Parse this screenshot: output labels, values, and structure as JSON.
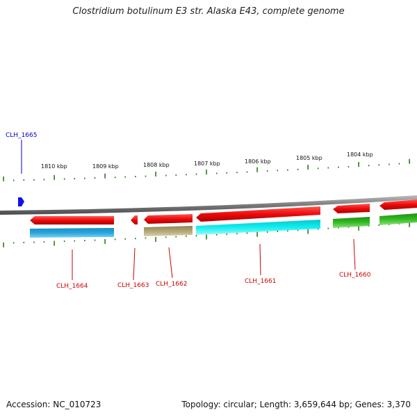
{
  "title": "Clostridium botulinum E3 str. Alaska E43, complete genome",
  "footer": {
    "accession": "Accession: NC_010723",
    "summary": "Topology: circular; Length: 3,659,644 bp; Genes: 3,370"
  },
  "ruler": [
    "1810 kbp",
    "1809 kbp",
    "1808 kbp",
    "1807 kbp",
    "1806 kbp",
    "1805 kbp",
    "1804 kbp"
  ],
  "genes": [
    {
      "name": "CLH_1665",
      "color": "#0000cc",
      "strand": "forward"
    },
    {
      "name": "CLH_1664",
      "color": "#cc0000",
      "strand": "reverse"
    },
    {
      "name": "CLH_1663",
      "color": "#cc0000",
      "strand": "reverse"
    },
    {
      "name": "CLH_1662",
      "color": "#cc0000",
      "strand": "reverse"
    },
    {
      "name": "CLH_1661",
      "color": "#cc0000",
      "strand": "reverse"
    },
    {
      "name": "CLH_1660",
      "color": "#cc0000",
      "strand": "reverse"
    }
  ],
  "colors": {
    "cds": "#ee1111",
    "tick": "#2a7a1a",
    "backbone": "#8a8a8a",
    "cog_blue": "#2aa6dd",
    "cog_cyan": "#11eef0",
    "cog_olive": "#b3a676",
    "cog_green": "#33bb22"
  }
}
